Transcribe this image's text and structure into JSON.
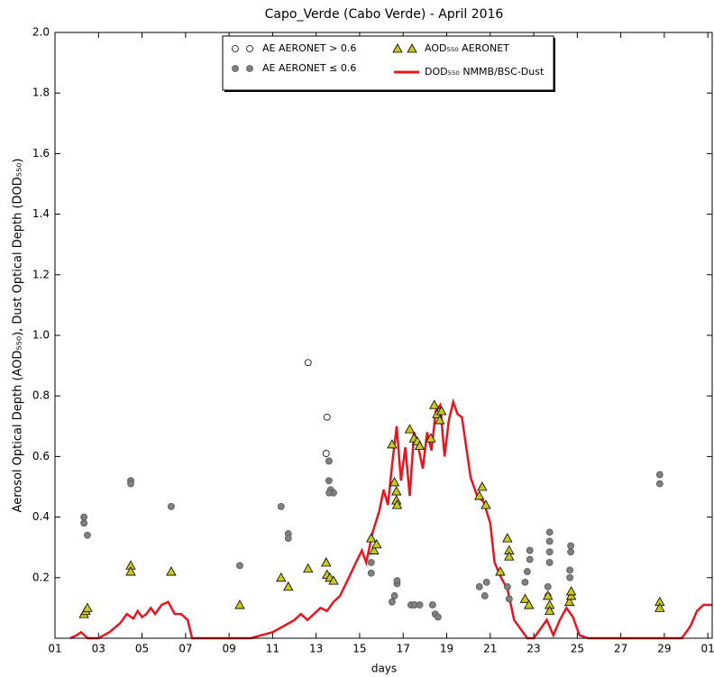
{
  "chart_data": {
    "type": "scatter-line",
    "title": "Capo_Verde (Cabo Verde) - April 2016",
    "xlabel": "days",
    "ylabel": "Aerosol Optical Depth (AOD₅₅₀), Dust Optical Depth (DOD₅₅₀)",
    "xlim": [
      1,
      31.2
    ],
    "ylim": [
      0,
      2
    ],
    "xticks": [
      {
        "value": 1,
        "label": "01"
      },
      {
        "value": 3,
        "label": "03"
      },
      {
        "value": 5,
        "label": "05"
      },
      {
        "value": 7,
        "label": "07"
      },
      {
        "value": 9,
        "label": "09"
      },
      11,
      13,
      15,
      17,
      19,
      21,
      23,
      25,
      27,
      29,
      {
        "value": 31,
        "label": "01"
      }
    ],
    "yticks": [
      0.2,
      0.4,
      0.6,
      0.8,
      {
        "value": 1,
        "label": "1.0"
      },
      1.2,
      1.4,
      1.6,
      1.8,
      {
        "value": 2,
        "label": "2.0"
      }
    ],
    "legend": "upper center",
    "series": [
      {
        "name": "AE AERONET > 0.6",
        "marker": "circle-open",
        "color": "#ffffff",
        "x": [
          12.63,
          13.5,
          13.46
        ],
        "values": [
          0.91,
          0.73,
          0.61
        ]
      },
      {
        "name": "AE AERONET ≤ 0.6",
        "marker": "circle",
        "color": "#808080",
        "x": [
          2.33,
          2.33,
          2.49,
          4.48,
          4.48,
          6.34,
          9.49,
          11.39,
          11.72,
          11.72,
          13.59,
          13.59,
          13.67,
          13.8,
          13.6,
          15.53,
          15.53,
          16.49,
          16.6,
          16.72,
          16.72,
          17.36,
          17.52,
          17.76,
          18.35,
          18.47,
          18.6,
          20.5,
          20.75,
          20.83,
          21.79,
          21.87,
          22.6,
          22.7,
          22.82,
          22.82,
          23.73,
          23.73,
          23.73,
          23.73,
          23.65,
          23.65,
          24.7,
          24.7,
          24.66,
          24.66,
          28.79,
          28.79
        ],
        "values": [
          0.4,
          0.38,
          0.34,
          0.52,
          0.51,
          0.435,
          0.24,
          0.435,
          0.345,
          0.33,
          0.585,
          0.52,
          0.49,
          0.48,
          0.48,
          0.25,
          0.215,
          0.12,
          0.14,
          0.18,
          0.19,
          0.11,
          0.11,
          0.11,
          0.11,
          0.08,
          0.07,
          0.17,
          0.14,
          0.185,
          0.17,
          0.13,
          0.185,
          0.22,
          0.26,
          0.29,
          0.35,
          0.32,
          0.285,
          0.25,
          0.17,
          0.14,
          0.305,
          0.285,
          0.225,
          0.2,
          0.54,
          0.51
        ]
      },
      {
        "name": "AOD₅₅₀ AERONET",
        "marker": "triangle",
        "color": "#c8c81e",
        "x": [
          2.33,
          2.41,
          2.49,
          4.48,
          4.48,
          6.34,
          9.49,
          11.39,
          11.72,
          12.63,
          13.46,
          13.5,
          13.63,
          13.8,
          15.53,
          15.66,
          15.78,
          16.49,
          16.6,
          16.69,
          16.69,
          16.72,
          17.3,
          17.5,
          17.65,
          17.76,
          18.27,
          18.43,
          18.56,
          18.68,
          18.76,
          20.5,
          20.63,
          20.8,
          21.46,
          21.79,
          21.87,
          21.87,
          22.6,
          22.78,
          23.65,
          23.73,
          23.73,
          24.64,
          24.72,
          24.72,
          28.79,
          28.79
        ],
        "values": [
          0.08,
          0.09,
          0.1,
          0.24,
          0.22,
          0.22,
          0.11,
          0.2,
          0.17,
          0.23,
          0.25,
          0.21,
          0.2,
          0.19,
          0.33,
          0.29,
          0.31,
          0.64,
          0.515,
          0.485,
          0.455,
          0.44,
          0.69,
          0.66,
          0.65,
          0.635,
          0.66,
          0.77,
          0.74,
          0.72,
          0.75,
          0.47,
          0.5,
          0.44,
          0.22,
          0.33,
          0.29,
          0.27,
          0.13,
          0.11,
          0.14,
          0.11,
          0.09,
          0.12,
          0.14,
          0.155,
          0.12,
          0.1
        ]
      },
      {
        "name": "DOD₅₅₀ NMMB/BSC-Dust",
        "marker": "line",
        "color": "#e8141e",
        "x": [
          1.7,
          2.0,
          2.2,
          2.5,
          3,
          3.5,
          4,
          4.3,
          4.6,
          4.8,
          5,
          5.2,
          5.4,
          5.6,
          5.9,
          6.2,
          6.5,
          6.8,
          7.1,
          7.3,
          8,
          9,
          10,
          10.5,
          11,
          11.5,
          12,
          12.3,
          12.6,
          12.9,
          13.2,
          13.5,
          13.8,
          14.1,
          14.5,
          14.9,
          15.1,
          15.3,
          15.6,
          15.9,
          16.1,
          16.3,
          16.5,
          16.7,
          16.9,
          17.1,
          17.3,
          17.5,
          17.7,
          17.9,
          18.1,
          18.3,
          18.5,
          18.7,
          18.9,
          19.1,
          19.3,
          19.5,
          19.7,
          19.9,
          20.1,
          20.4,
          20.7,
          21.0,
          21.2,
          21.5,
          21.8,
          22.1,
          22.4,
          22.7,
          23.0,
          23.3,
          23.6,
          23.9,
          24.2,
          24.5,
          24.8,
          25.1,
          25.5,
          27,
          29,
          29.8,
          30.2,
          30.5,
          30.8,
          31.0,
          31.2
        ],
        "values": [
          0,
          0.01,
          0.02,
          0,
          0,
          0.02,
          0.05,
          0.08,
          0.065,
          0.09,
          0.07,
          0.08,
          0.1,
          0.08,
          0.11,
          0.12,
          0.08,
          0.08,
          0.06,
          0,
          0,
          0,
          0,
          0.01,
          0.02,
          0.04,
          0.06,
          0.08,
          0.06,
          0.08,
          0.1,
          0.09,
          0.12,
          0.14,
          0.2,
          0.26,
          0.29,
          0.25,
          0.35,
          0.42,
          0.49,
          0.44,
          0.58,
          0.7,
          0.52,
          0.63,
          0.47,
          0.68,
          0.63,
          0.56,
          0.68,
          0.62,
          0.75,
          0.77,
          0.6,
          0.72,
          0.78,
          0.74,
          0.73,
          0.63,
          0.53,
          0.47,
          0.45,
          0.38,
          0.25,
          0.2,
          0.16,
          0.06,
          0.03,
          0,
          0,
          0.03,
          0.06,
          0.01,
          0.06,
          0.1,
          0.07,
          0.01,
          0,
          0,
          0,
          0,
          0.04,
          0.09,
          0.11,
          0.11,
          0.11
        ]
      }
    ]
  }
}
